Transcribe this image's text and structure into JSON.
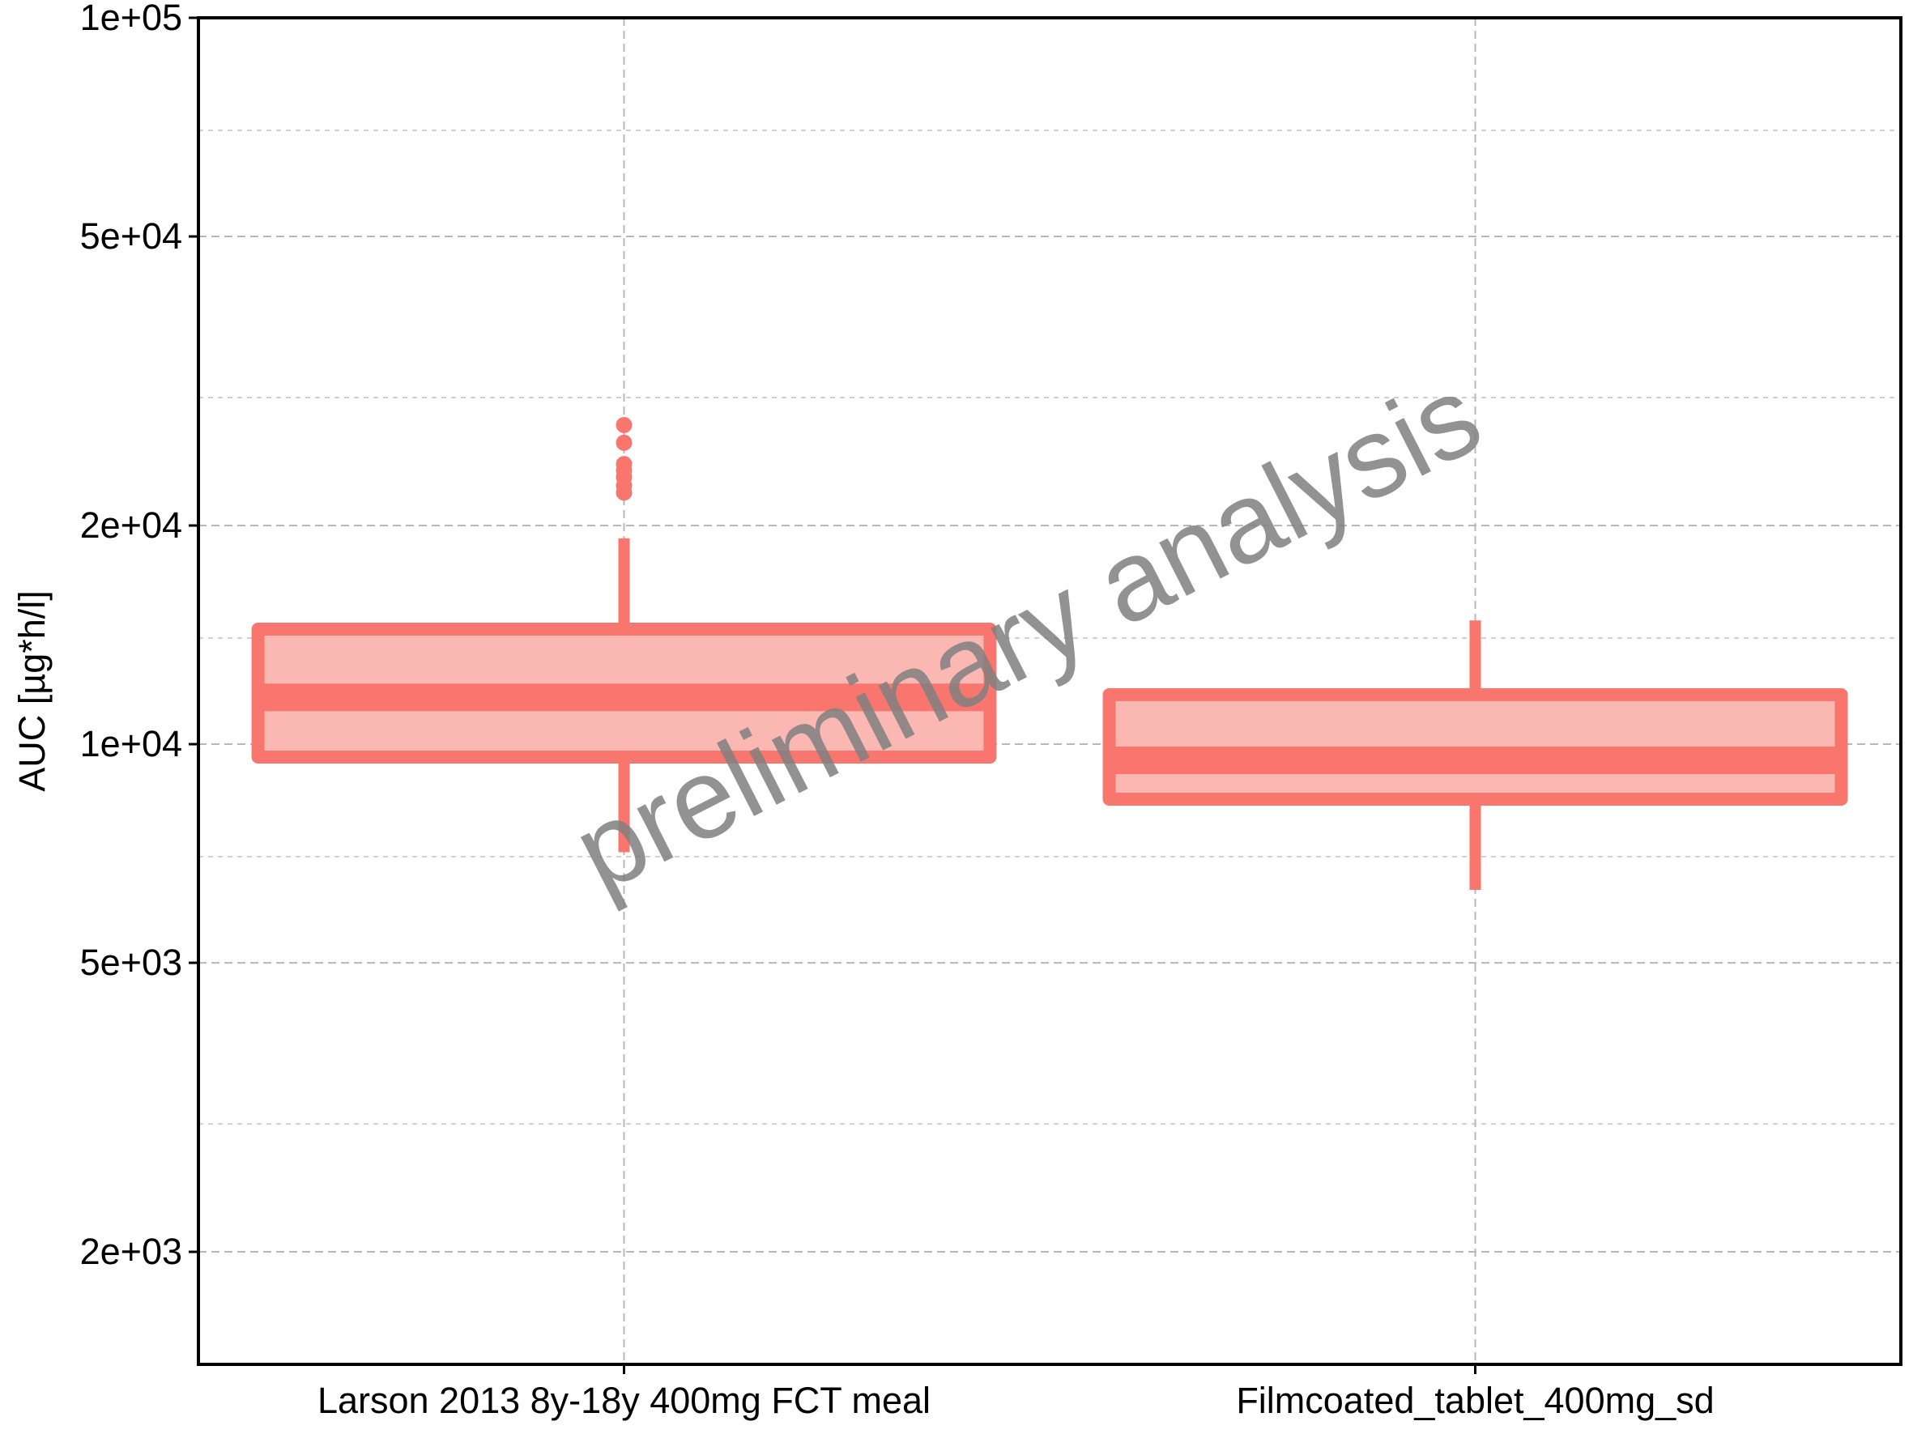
{
  "chart_data": {
    "type": "boxplot",
    "title": "",
    "xlabel": "",
    "ylabel": "AUC [µg*h/l]",
    "y_scale": "log10",
    "ylim": [
      1400,
      100000
    ],
    "y_ticks": [
      {
        "value": 2000,
        "label": "2e+03"
      },
      {
        "value": 5000,
        "label": "5e+03"
      },
      {
        "value": 10000,
        "label": "1e+04"
      },
      {
        "value": 20000,
        "label": "2e+04"
      },
      {
        "value": 50000,
        "label": "5e+04"
      },
      {
        "value": 100000,
        "label": "1e+05"
      }
    ],
    "y_minor_ticks": [
      3000,
      7000,
      14000,
      30000,
      70000
    ],
    "grid": true,
    "categories": [
      "Larson 2013 8y-18y 400mg FCT meal",
      "Filmcoated_tablet_400mg_sd"
    ],
    "boxes": [
      {
        "category": "Larson 2013 8y-18y 400mg FCT meal",
        "whisker_low": 7100,
        "q1": 9600,
        "median": 11600,
        "q3": 14400,
        "whisker_high": 19200,
        "outliers": [
          22200,
          22700,
          23300,
          23800,
          24300,
          26000,
          27500
        ]
      },
      {
        "category": "Filmcoated_tablet_400mg_sd",
        "whisker_low": 6300,
        "q1": 8400,
        "median": 9500,
        "q3": 11700,
        "whisker_high": 14800,
        "outliers": []
      }
    ],
    "colors": {
      "line": "#f8766d",
      "fill": "#fbb7b2"
    },
    "watermark": "preliminary analysis"
  }
}
